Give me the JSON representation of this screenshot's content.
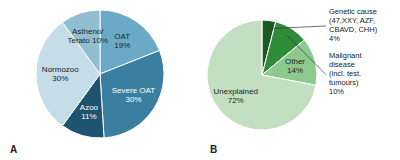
{
  "chart_data": [
    {
      "type": "pie",
      "title": "A",
      "labels": [
        "OAT\n19%",
        "Severe OAT\n30%",
        "Azoo\n11%",
        "Normozoo\n30%",
        "Astheno/\nTerato 10%"
      ],
      "values": [
        19,
        30,
        11,
        30,
        10
      ],
      "colors": [
        "#6aaac5",
        "#3b7fa0",
        "#1e5470",
        "#c5dce9",
        "#91bed0"
      ]
    },
    {
      "type": "pie",
      "title": "B",
      "labels": [
        "Genetic cause\n(47,XXY, AZF,\nCBAVD, CHH)\n4%",
        "Malignant\ndisease\n(incl. test.\ntumours)\n10%",
        "Other\n14%",
        "Unexplained\n72%"
      ],
      "values": [
        4,
        10,
        14,
        72
      ],
      "colors": [
        "#1a5c20",
        "#2e8b3a",
        "#8dc98d",
        "#c2dfc2"
      ]
    }
  ]
}
